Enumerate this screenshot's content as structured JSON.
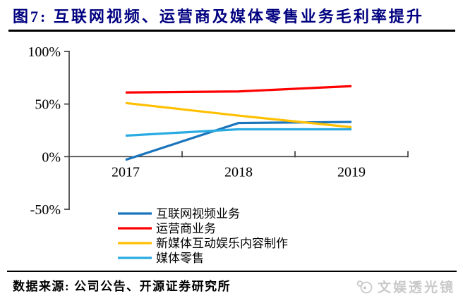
{
  "header": {
    "title": "图7: 互联网视频、运营商及媒体零售业务毛利率提升"
  },
  "chart_data": {
    "type": "line",
    "x": [
      "2017",
      "2018",
      "2019"
    ],
    "series": [
      {
        "name": "互联网视频业务",
        "color": "#1B75BC",
        "values": [
          -3,
          32,
          33
        ]
      },
      {
        "name": "运营商业务",
        "color": "#FF0000",
        "values": [
          61,
          62,
          67
        ]
      },
      {
        "name": "新媒体互动娱乐内容制作",
        "color": "#FFC000",
        "values": [
          51,
          39,
          28
        ]
      },
      {
        "name": "媒体零售",
        "color": "#29ABE2",
        "values": [
          20,
          26,
          26
        ]
      }
    ],
    "ylim": [
      -50,
      100
    ],
    "yticks": [
      100,
      50,
      0,
      -50
    ],
    "ytick_labels": [
      "100%",
      "50%",
      "0%",
      "-50%"
    ],
    "grid": false,
    "legend_position": "bottom-left"
  },
  "footer": {
    "source_label": "数据来源:",
    "source_text": "公司公告、开源证券研究所",
    "watermark": "文娱透光镜"
  },
  "colors": {
    "title": "#000080",
    "axis": "#3F3F3F",
    "rule": "#000000",
    "watermark": "#C9C9C9"
  }
}
